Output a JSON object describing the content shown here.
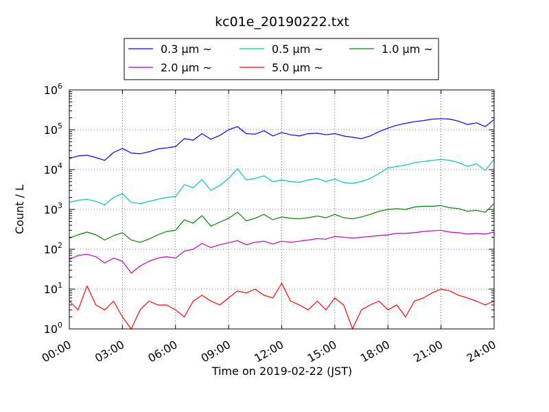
{
  "chart_data": {
    "type": "line",
    "title": "kc01e_20190222.txt",
    "xlabel": "Time on 2019-02-22 (JST)",
    "ylabel": "Count / L",
    "xlim": [
      0,
      24
    ],
    "ylim": [
      1,
      1000000
    ],
    "yscale": "log",
    "grid": true,
    "legend_position": "top-center",
    "x_ticks": [
      {
        "value": 0,
        "label": "00:00"
      },
      {
        "value": 3,
        "label": "03:00"
      },
      {
        "value": 6,
        "label": "06:00"
      },
      {
        "value": 9,
        "label": "09:00"
      },
      {
        "value": 12,
        "label": "12:00"
      },
      {
        "value": 15,
        "label": "15:00"
      },
      {
        "value": 18,
        "label": "18:00"
      },
      {
        "value": 21,
        "label": "21:00"
      },
      {
        "value": 24,
        "label": "24:00"
      }
    ],
    "y_ticks": [
      {
        "value": 1,
        "base": "10",
        "exp": "0"
      },
      {
        "value": 10,
        "base": "10",
        "exp": "1"
      },
      {
        "value": 100,
        "base": "10",
        "exp": "2"
      },
      {
        "value": 1000,
        "base": "10",
        "exp": "3"
      },
      {
        "value": 10000,
        "base": "10",
        "exp": "4"
      },
      {
        "value": 100000,
        "base": "10",
        "exp": "5"
      },
      {
        "value": 1000000,
        "base": "10",
        "exp": "6"
      }
    ],
    "series": [
      {
        "name": "0.3 μm ~",
        "color": "#0000ff",
        "x": [
          0,
          0.5,
          1,
          1.5,
          2,
          2.5,
          3,
          3.5,
          4,
          4.5,
          5,
          5.5,
          6,
          6.5,
          7,
          7.5,
          8,
          8.5,
          9,
          9.5,
          10,
          10.5,
          11,
          11.5,
          12,
          12.5,
          13,
          13.5,
          14,
          14.5,
          15,
          15.5,
          16,
          16.5,
          17,
          17.5,
          18,
          18.5,
          19,
          19.5,
          20,
          20.5,
          21,
          21.5,
          22,
          22.5,
          23,
          23.5,
          24
        ],
        "y": [
          19000,
          22000,
          23000,
          20000,
          17000,
          27000,
          34000,
          26000,
          25000,
          28000,
          33000,
          35000,
          38000,
          60000,
          55000,
          80000,
          58000,
          72000,
          100000,
          120000,
          80000,
          78000,
          95000,
          70000,
          85000,
          75000,
          70000,
          80000,
          82000,
          75000,
          80000,
          70000,
          65000,
          60000,
          70000,
          90000,
          110000,
          130000,
          145000,
          160000,
          170000,
          185000,
          190000,
          185000,
          165000,
          135000,
          150000,
          120000,
          180000
        ]
      },
      {
        "name": "0.5 μm ~",
        "color": "#00bfbf",
        "x": [
          0,
          0.5,
          1,
          1.5,
          2,
          2.5,
          3,
          3.5,
          4,
          4.5,
          5,
          5.5,
          6,
          6.5,
          7,
          7.5,
          8,
          8.5,
          9,
          9.5,
          10,
          10.5,
          11,
          11.5,
          12,
          12.5,
          13,
          13.5,
          14,
          14.5,
          15,
          15.5,
          16,
          16.5,
          17,
          17.5,
          18,
          18.5,
          19,
          19.5,
          20,
          20.5,
          21,
          21.5,
          22,
          22.5,
          23,
          23.5,
          24
        ],
        "y": [
          1500,
          1700,
          1800,
          1600,
          1300,
          2000,
          2500,
          1500,
          1400,
          1600,
          1800,
          2000,
          2100,
          4200,
          3500,
          5600,
          3000,
          4000,
          6000,
          10500,
          5500,
          6000,
          7000,
          5000,
          5500,
          5000,
          4800,
          5500,
          6000,
          5000,
          5800,
          4700,
          4500,
          5000,
          6000,
          8000,
          11000,
          12000,
          13000,
          15000,
          16000,
          17000,
          18000,
          17000,
          15000,
          12000,
          14000,
          9500,
          18000
        ]
      },
      {
        "name": "1.0 μm ~",
        "color": "#008000",
        "x": [
          0,
          0.5,
          1,
          1.5,
          2,
          2.5,
          3,
          3.5,
          4,
          4.5,
          5,
          5.5,
          6,
          6.5,
          7,
          7.5,
          8,
          8.5,
          9,
          9.5,
          10,
          10.5,
          11,
          11.5,
          12,
          12.5,
          13,
          13.5,
          14,
          14.5,
          15,
          15.5,
          16,
          16.5,
          17,
          17.5,
          18,
          18.5,
          19,
          19.5,
          20,
          20.5,
          21,
          21.5,
          22,
          22.5,
          23,
          23.5,
          24
        ],
        "y": [
          190,
          230,
          270,
          230,
          170,
          220,
          260,
          170,
          150,
          180,
          230,
          280,
          300,
          550,
          450,
          700,
          380,
          480,
          600,
          850,
          520,
          600,
          750,
          550,
          650,
          600,
          580,
          620,
          680,
          620,
          750,
          620,
          580,
          650,
          750,
          900,
          1000,
          1050,
          1000,
          1150,
          1200,
          1200,
          1250,
          1100,
          1050,
          900,
          950,
          850,
          1400
        ]
      },
      {
        "name": "2.0 μm ~",
        "color": "#bf00bf",
        "x": [
          0,
          0.5,
          1,
          1.5,
          2,
          2.5,
          3,
          3.5,
          4,
          4.5,
          5,
          5.5,
          6,
          6.5,
          7,
          7.5,
          8,
          8.5,
          9,
          9.5,
          10,
          10.5,
          11,
          11.5,
          12,
          12.5,
          13,
          13.5,
          14,
          14.5,
          15,
          15.5,
          16,
          16.5,
          17,
          17.5,
          18,
          18.5,
          19,
          19.5,
          20,
          20.5,
          21,
          21.5,
          22,
          22.5,
          23,
          23.5,
          24
        ],
        "y": [
          55,
          70,
          75,
          65,
          45,
          60,
          50,
          25,
          38,
          50,
          60,
          65,
          60,
          90,
          100,
          140,
          110,
          130,
          145,
          165,
          130,
          150,
          160,
          135,
          160,
          150,
          160,
          170,
          185,
          180,
          210,
          200,
          190,
          200,
          210,
          220,
          230,
          250,
          250,
          260,
          280,
          290,
          300,
          270,
          260,
          240,
          250,
          240,
          270
        ]
      },
      {
        "name": "5.0 μm ~",
        "color": "#ff0000",
        "x": [
          0,
          0.5,
          1,
          1.5,
          2,
          2.5,
          3,
          3.5,
          4,
          4.5,
          5,
          5.5,
          6,
          6.5,
          7,
          7.5,
          8,
          8.5,
          9,
          9.5,
          10,
          10.5,
          11,
          11.5,
          12,
          12.5,
          13,
          13.5,
          14,
          14.5,
          15,
          15.5,
          16,
          16.5,
          17,
          17.5,
          18,
          18.5,
          19,
          19.5,
          20,
          20.5,
          21,
          21.5,
          22,
          22.5,
          23,
          23.5,
          24
        ],
        "y": [
          5,
          3,
          12,
          4,
          3,
          5,
          2,
          1,
          3,
          5,
          4,
          4,
          3,
          2,
          5,
          7,
          5,
          4,
          6,
          9,
          8,
          10,
          7,
          6,
          14,
          5,
          4,
          3,
          5,
          3,
          6,
          4,
          1,
          3,
          4,
          5,
          3,
          4,
          2,
          5,
          6,
          8,
          10,
          9,
          7,
          6,
          5,
          4,
          5
        ]
      }
    ]
  }
}
